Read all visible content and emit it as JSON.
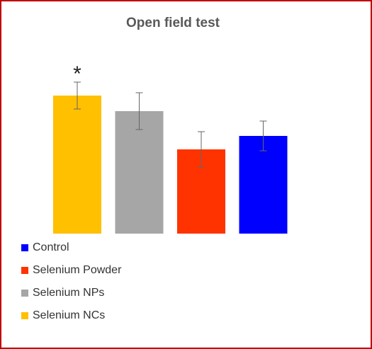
{
  "chart_data": {
    "type": "bar",
    "title": "Open field test",
    "series": [
      {
        "name": "Control",
        "color": "#0000ff",
        "values": [
          138
        ],
        "errors": [
          21
        ]
      },
      {
        "name": "Selenium Powder",
        "color": "#ff3300",
        "values": [
          119
        ],
        "errors": [
          25
        ]
      },
      {
        "name": "Selenium NPs",
        "color": "#a6a6a6",
        "values": [
          173
        ],
        "errors": [
          26
        ]
      },
      {
        "name": "Selenium NCs",
        "color": "#ffc000",
        "values": [
          195
        ],
        "errors": [
          19
        ]
      }
    ],
    "annotation": "*",
    "ylim": [
      0,
      200
    ]
  }
}
